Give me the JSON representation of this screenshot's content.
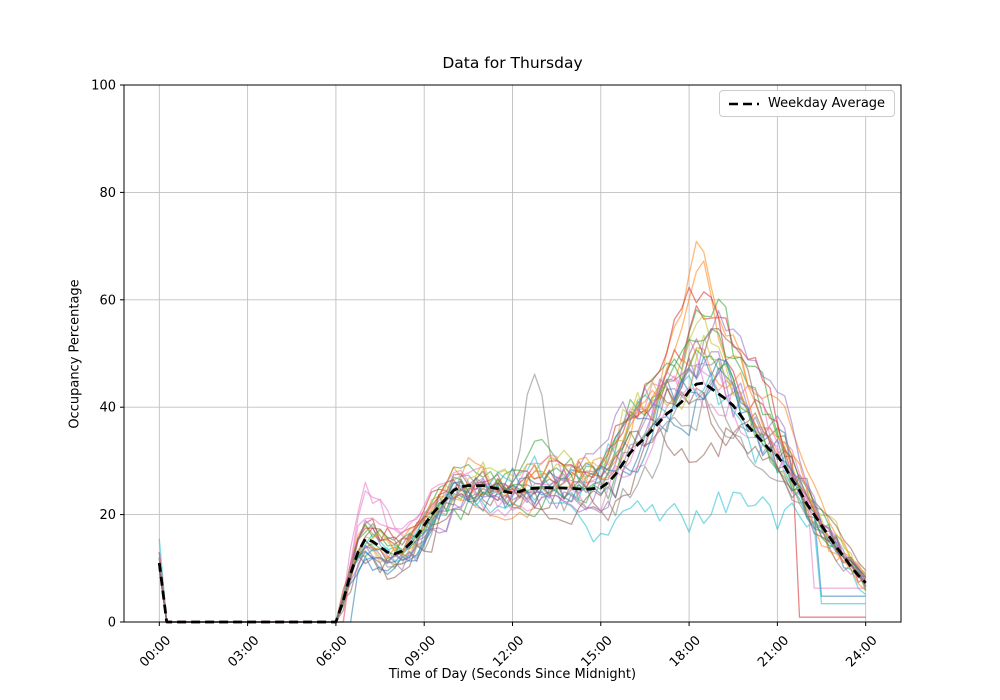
{
  "chart_data": {
    "type": "line",
    "title": "Data for Thursday",
    "xlabel": "Time of Day (Seconds Since Midnight)",
    "ylabel": "Occupancy Percentage",
    "ylim": [
      0,
      100
    ],
    "xlim_hours": [
      -1.2,
      25.2
    ],
    "grid": true,
    "grid_color": "#c0c0c0",
    "x_ticks": [
      {
        "hours": 0,
        "label": "00:00"
      },
      {
        "hours": 3,
        "label": "03:00"
      },
      {
        "hours": 6,
        "label": "06:00"
      },
      {
        "hours": 9,
        "label": "09:00"
      },
      {
        "hours": 12,
        "label": "12:00"
      },
      {
        "hours": 15,
        "label": "15:00"
      },
      {
        "hours": 18,
        "label": "18:00"
      },
      {
        "hours": 21,
        "label": "21:00"
      },
      {
        "hours": 24,
        "label": "24:00"
      }
    ],
    "y_ticks": [
      0,
      20,
      40,
      60,
      80,
      100
    ],
    "legend": {
      "label": "Weekday Average",
      "position": "upper right",
      "line_color": "#000000",
      "line_style": "dashed"
    },
    "average": {
      "name": "Weekday Average",
      "color": "#000000",
      "dashed": true,
      "points": [
        [
          0,
          11
        ],
        [
          0.25,
          0
        ],
        [
          6,
          0
        ],
        [
          6.25,
          4
        ],
        [
          6.5,
          9
        ],
        [
          6.75,
          13
        ],
        [
          7,
          15.5
        ],
        [
          7.25,
          15
        ],
        [
          7.5,
          14
        ],
        [
          7.75,
          13
        ],
        [
          8,
          12.7
        ],
        [
          8.25,
          13.2
        ],
        [
          8.5,
          14.5
        ],
        [
          8.75,
          16
        ],
        [
          9,
          18
        ],
        [
          9.25,
          20
        ],
        [
          9.5,
          21.5
        ],
        [
          9.75,
          23
        ],
        [
          10,
          24.5
        ],
        [
          10.25,
          25.2
        ],
        [
          10.5,
          25.4
        ],
        [
          11,
          25.4
        ],
        [
          11.25,
          25.1
        ],
        [
          11.5,
          24.8
        ],
        [
          11.75,
          24.3
        ],
        [
          12,
          24
        ],
        [
          12.25,
          24.3
        ],
        [
          12.5,
          24.8
        ],
        [
          13,
          25
        ],
        [
          13.5,
          25
        ],
        [
          14,
          24.9
        ],
        [
          14.5,
          24.7
        ],
        [
          15,
          25
        ],
        [
          15.25,
          26
        ],
        [
          15.5,
          27.5
        ],
        [
          15.75,
          29.5
        ],
        [
          16,
          31.5
        ],
        [
          16.25,
          33
        ],
        [
          16.5,
          34.3
        ],
        [
          16.75,
          35.8
        ],
        [
          17,
          37.3
        ],
        [
          17.25,
          38.8
        ],
        [
          17.5,
          39.8
        ],
        [
          17.75,
          41
        ],
        [
          18,
          43
        ],
        [
          18.25,
          44.3
        ],
        [
          18.5,
          44.5
        ],
        [
          18.75,
          43.5
        ],
        [
          19,
          42.5
        ],
        [
          19.25,
          41.5
        ],
        [
          19.5,
          40.3
        ],
        [
          19.75,
          38.5
        ],
        [
          20,
          36.5
        ],
        [
          20.25,
          35
        ],
        [
          20.5,
          33.5
        ],
        [
          20.75,
          32
        ],
        [
          21,
          31
        ],
        [
          21.25,
          29
        ],
        [
          21.5,
          26.5
        ],
        [
          21.75,
          24.5
        ],
        [
          22,
          22
        ],
        [
          22.25,
          20
        ],
        [
          22.5,
          18
        ],
        [
          22.75,
          16
        ],
        [
          23,
          14
        ],
        [
          23.25,
          12.2
        ],
        [
          23.5,
          10.3
        ],
        [
          23.75,
          8.7
        ],
        [
          24,
          7.3
        ]
      ]
    },
    "series_alpha": 0.55,
    "series": [
      {
        "color": "#1f77b4",
        "seed": 11,
        "amp": 0.3,
        "morning": 0.7,
        "peak": 1.05,
        "start": 11,
        "lag": 0.5
      },
      {
        "color": "#ff7f0e",
        "seed": 22,
        "amp": 0.28,
        "morning": 1.0,
        "peak": 1.44,
        "start": 10
      },
      {
        "color": "#2ca02c",
        "seed": 33,
        "amp": 0.3,
        "morning": 1.1,
        "peak": 1.25,
        "start": 12,
        "bump": {
          "t": 12.9,
          "h": 12,
          "w": 0.4
        }
      },
      {
        "color": "#d62728",
        "seed": 44,
        "amp": 0.34,
        "morning": 1.2,
        "peak": 1.2,
        "start": 13,
        "flat": {
          "t": 21.75,
          "v": 0.9
        }
      },
      {
        "color": "#9467bd",
        "seed": 55,
        "amp": 0.28,
        "morning": 1.0,
        "peak": 1.1,
        "start": 10
      },
      {
        "color": "#8c564b",
        "seed": 66,
        "amp": 0.3,
        "morning": 0.95,
        "peak": 0.95,
        "start": 11
      },
      {
        "color": "#e377c2",
        "seed": 77,
        "amp": 0.3,
        "morning": 1.6,
        "peak": 1.1,
        "start": 12
      },
      {
        "color": "#7f7f7f",
        "seed": 88,
        "amp": 0.28,
        "morning": 1.0,
        "peak": 0.9,
        "start": 11,
        "bump": {
          "t": 12.75,
          "h": 19,
          "w": 0.35
        }
      },
      {
        "color": "#bcbd22",
        "seed": 99,
        "amp": 0.28,
        "morning": 1.05,
        "peak": 1.15,
        "start": 12
      },
      {
        "color": "#17becf",
        "seed": 110,
        "amp": 0.26,
        "morning": 1.0,
        "peak": 0.42,
        "start": 15.5
      },
      {
        "color": "#1f77b4",
        "seed": 121,
        "amp": 0.26,
        "morning": 0.85,
        "peak": 1.1,
        "start": 10,
        "flat": {
          "t": 22.5,
          "v": 4.8
        }
      },
      {
        "color": "#ff7f0e",
        "seed": 132,
        "amp": 0.3,
        "morning": 1.1,
        "peak": 1.2,
        "start": 11
      },
      {
        "color": "#2ca02c",
        "seed": 143,
        "amp": 0.32,
        "morning": 1.15,
        "peak": 1.3,
        "start": 12
      },
      {
        "color": "#d62728",
        "seed": 154,
        "amp": 0.3,
        "morning": 1.3,
        "peak": 1.25,
        "start": 13
      },
      {
        "color": "#9467bd",
        "seed": 165,
        "amp": 0.3,
        "morning": 1.1,
        "peak": 1.15,
        "start": 11
      },
      {
        "color": "#8c564b",
        "seed": 176,
        "amp": 0.32,
        "morning": 0.9,
        "peak": 1.05,
        "start": 10
      },
      {
        "color": "#e377c2",
        "seed": 187,
        "amp": 0.28,
        "morning": 1.2,
        "peak": 1.2,
        "start": 12,
        "flat": {
          "t": 22.25,
          "v": 6.3
        }
      },
      {
        "color": "#7f7f7f",
        "seed": 198,
        "amp": 0.26,
        "morning": 1.0,
        "peak": 1.0,
        "start": 11
      },
      {
        "color": "#bcbd22",
        "seed": 209,
        "amp": 0.28,
        "morning": 1.1,
        "peak": 1.1,
        "start": 12
      },
      {
        "color": "#17becf",
        "seed": 220,
        "amp": 0.3,
        "morning": 1.0,
        "peak": 1.05,
        "start": 12,
        "flat": {
          "t": 22.5,
          "v": 3.4
        }
      },
      {
        "color": "#1f77b4",
        "seed": 231,
        "amp": 0.28,
        "morning": 0.9,
        "peak": 1.15,
        "start": 10
      },
      {
        "color": "#ff7f0e",
        "seed": 242,
        "amp": 0.26,
        "morning": 1.0,
        "peak": 1.1,
        "start": 11,
        "lag": 0.25
      },
      {
        "color": "#2ca02c",
        "seed": 253,
        "amp": 0.28,
        "morning": 1.05,
        "peak": 1.05,
        "start": 12
      },
      {
        "color": "#9467bd",
        "seed": 264,
        "amp": 0.3,
        "morning": 1.0,
        "peak": 1.2,
        "start": 11
      },
      {
        "color": "#e377c2",
        "seed": 275,
        "amp": 0.3,
        "morning": 1.35,
        "peak": 1.05,
        "start": 13,
        "lag": 0.25
      },
      {
        "color": "#8c564b",
        "seed": 286,
        "amp": 0.28,
        "morning": 1.0,
        "peak": 1.1,
        "start": 10
      }
    ]
  }
}
